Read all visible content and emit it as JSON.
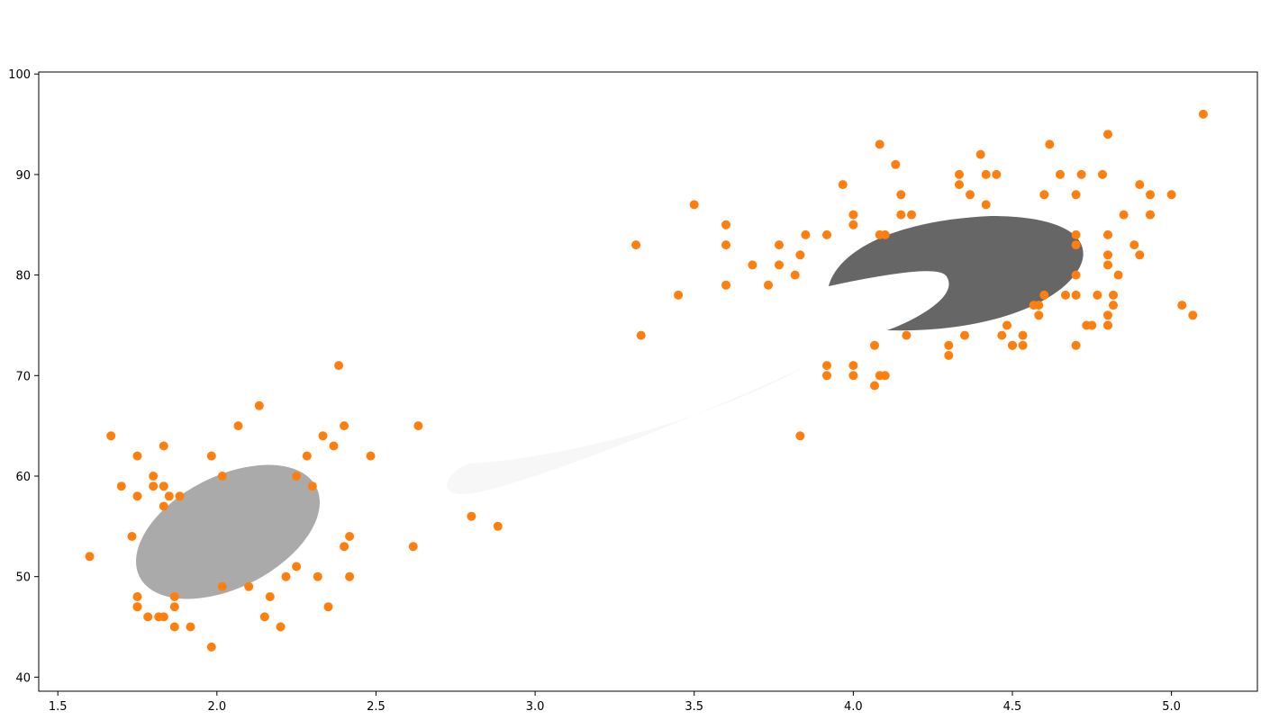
{
  "chart_data": {
    "type": "scatter",
    "title": "",
    "xlabel": "",
    "ylabel": "",
    "xlim": [
      1.44,
      5.27
    ],
    "ylim": [
      38.6,
      100.2
    ],
    "xticks": [
      1.5,
      2.0,
      2.5,
      3.0,
      3.5,
      4.0,
      4.5,
      5.0
    ],
    "yticks": [
      40,
      50,
      60,
      70,
      80,
      90,
      100
    ],
    "grid": false,
    "point_color": "#ff7f0e",
    "points": [
      [
        1.6,
        52
      ],
      [
        1.667,
        64
      ],
      [
        1.7,
        59
      ],
      [
        1.733,
        54
      ],
      [
        1.75,
        62
      ],
      [
        1.75,
        58
      ],
      [
        1.75,
        48
      ],
      [
        1.75,
        47
      ],
      [
        1.75,
        47
      ],
      [
        1.783,
        46
      ],
      [
        1.8,
        60
      ],
      [
        1.8,
        59
      ],
      [
        1.817,
        46
      ],
      [
        1.833,
        63
      ],
      [
        1.833,
        59
      ],
      [
        1.833,
        57
      ],
      [
        1.833,
        46
      ],
      [
        1.85,
        58
      ],
      [
        1.867,
        48
      ],
      [
        1.867,
        47
      ],
      [
        1.867,
        45
      ],
      [
        1.883,
        58
      ],
      [
        1.917,
        45
      ],
      [
        1.983,
        62
      ],
      [
        1.983,
        43
      ],
      [
        2.017,
        60
      ],
      [
        2.017,
        49
      ],
      [
        2.067,
        65
      ],
      [
        2.1,
        49
      ],
      [
        2.133,
        67
      ],
      [
        2.15,
        46
      ],
      [
        2.167,
        48
      ],
      [
        2.2,
        45
      ],
      [
        2.217,
        50
      ],
      [
        2.25,
        60
      ],
      [
        2.25,
        51
      ],
      [
        2.283,
        62
      ],
      [
        2.3,
        59
      ],
      [
        2.317,
        50
      ],
      [
        2.333,
        64
      ],
      [
        2.35,
        47
      ],
      [
        2.367,
        63
      ],
      [
        2.383,
        71
      ],
      [
        2.4,
        65
      ],
      [
        2.4,
        53
      ],
      [
        2.417,
        54
      ],
      [
        2.417,
        50
      ],
      [
        2.483,
        62
      ],
      [
        2.617,
        53
      ],
      [
        2.633,
        65
      ],
      [
        2.8,
        56
      ],
      [
        2.883,
        55
      ],
      [
        3.317,
        83
      ],
      [
        3.333,
        74
      ],
      [
        3.45,
        78
      ],
      [
        3.5,
        87
      ],
      [
        3.6,
        85
      ],
      [
        3.6,
        83
      ],
      [
        3.6,
        79
      ],
      [
        3.683,
        81
      ],
      [
        3.733,
        79
      ],
      [
        3.767,
        83
      ],
      [
        3.767,
        81
      ],
      [
        3.817,
        80
      ],
      [
        3.833,
        82
      ],
      [
        3.833,
        64
      ],
      [
        3.85,
        84
      ],
      [
        3.917,
        84
      ],
      [
        3.917,
        71
      ],
      [
        3.917,
        70
      ],
      [
        3.967,
        89
      ],
      [
        4.0,
        86
      ],
      [
        4.0,
        85
      ],
      [
        4.0,
        71
      ],
      [
        4.0,
        70
      ],
      [
        4.067,
        73
      ],
      [
        4.067,
        69
      ],
      [
        4.083,
        93
      ],
      [
        4.083,
        84
      ],
      [
        4.083,
        70
      ],
      [
        4.1,
        84
      ],
      [
        4.1,
        70
      ],
      [
        4.133,
        91
      ],
      [
        4.15,
        88
      ],
      [
        4.15,
        86
      ],
      [
        4.167,
        74
      ],
      [
        4.183,
        86
      ],
      [
        4.3,
        73
      ],
      [
        4.3,
        72
      ],
      [
        4.333,
        90
      ],
      [
        4.333,
        89
      ],
      [
        4.35,
        74
      ],
      [
        4.367,
        88
      ],
      [
        4.4,
        92
      ],
      [
        4.417,
        90
      ],
      [
        4.417,
        87
      ],
      [
        4.45,
        90
      ],
      [
        4.467,
        74
      ],
      [
        4.483,
        75
      ],
      [
        4.5,
        73
      ],
      [
        4.5,
        73
      ],
      [
        4.533,
        74
      ],
      [
        4.533,
        73
      ],
      [
        4.567,
        77
      ],
      [
        4.583,
        77
      ],
      [
        4.583,
        76
      ],
      [
        4.6,
        88
      ],
      [
        4.6,
        78
      ],
      [
        4.617,
        93
      ],
      [
        4.65,
        90
      ],
      [
        4.667,
        78
      ],
      [
        4.7,
        88
      ],
      [
        4.7,
        84
      ],
      [
        4.7,
        83
      ],
      [
        4.7,
        80
      ],
      [
        4.7,
        78
      ],
      [
        4.7,
        73
      ],
      [
        4.717,
        90
      ],
      [
        4.733,
        75
      ],
      [
        4.75,
        75
      ],
      [
        4.767,
        78
      ],
      [
        4.783,
        90
      ],
      [
        4.8,
        94
      ],
      [
        4.8,
        84
      ],
      [
        4.8,
        82
      ],
      [
        4.8,
        81
      ],
      [
        4.8,
        76
      ],
      [
        4.8,
        75
      ],
      [
        4.8,
        75
      ],
      [
        4.817,
        78
      ],
      [
        4.817,
        77
      ],
      [
        4.833,
        80
      ],
      [
        4.85,
        86
      ],
      [
        4.883,
        83
      ],
      [
        4.9,
        89
      ],
      [
        4.9,
        82
      ],
      [
        4.933,
        88
      ],
      [
        4.933,
        86
      ],
      [
        4.933,
        86
      ],
      [
        5.0,
        88
      ],
      [
        5.033,
        77
      ],
      [
        5.067,
        76
      ],
      [
        5.1,
        96
      ]
    ],
    "ellipses": [
      {
        "fill": "#aaaaaa",
        "center": [
          2.04,
          54.8
        ],
        "semi_major_x": 0.31,
        "semi_minor": 0.155,
        "angle_deg": 27
      },
      {
        "fill": "#f7f7f7",
        "comet_head": [
          2.69,
          60.2
        ],
        "comet_tail": [
          3.95,
          73.5
        ]
      },
      {
        "fill": "#666666",
        "center": [
          4.3,
          80
        ],
        "crescent": true
      }
    ]
  }
}
